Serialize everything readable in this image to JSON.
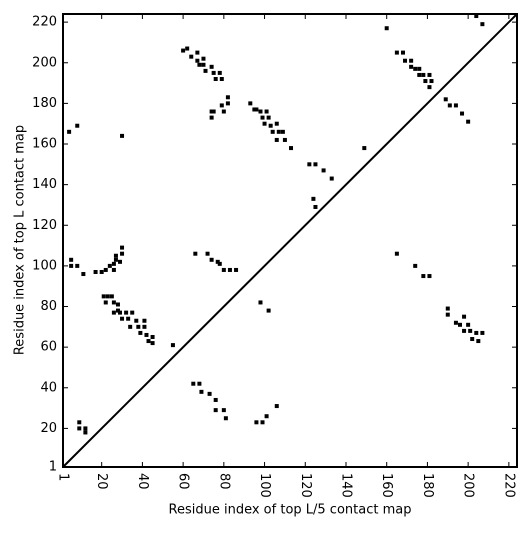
{
  "chart_data": {
    "type": "scatter",
    "xlabel": "Residue index of top L/5 contact map",
    "ylabel": "Residue index of top L contact map",
    "color": "#000000",
    "xlim": [
      1,
      224
    ],
    "ylim": [
      1,
      224
    ],
    "xticks": [
      1,
      20,
      40,
      60,
      80,
      100,
      120,
      140,
      160,
      180,
      200,
      220
    ],
    "yticks": [
      1,
      20,
      40,
      60,
      80,
      100,
      120,
      140,
      160,
      180,
      200,
      220
    ],
    "x": [
      60,
      62,
      64,
      67,
      67,
      68,
      70,
      70,
      71,
      74,
      75,
      76,
      78,
      79,
      74,
      75,
      74,
      79,
      80,
      82,
      82,
      93,
      95,
      96,
      98,
      99,
      100,
      101,
      102,
      103,
      104,
      106,
      107,
      106,
      109,
      110,
      113,
      122,
      125,
      129,
      133,
      124,
      125,
      149,
      4,
      8,
      30,
      21,
      23,
      22,
      25,
      26,
      28,
      26,
      28,
      29,
      30,
      32,
      33,
      35,
      34,
      37,
      38,
      39,
      41,
      41,
      42,
      43,
      45,
      45,
      55,
      20,
      22,
      24,
      26,
      26,
      27,
      27,
      29,
      30,
      30,
      17,
      11,
      5,
      8,
      5,
      66,
      72,
      74,
      77,
      78,
      80,
      83,
      86,
      65,
      68,
      69,
      73,
      76,
      76,
      80,
      81,
      96,
      99,
      98,
      102,
      101,
      106,
      9,
      12,
      9,
      12,
      160,
      165,
      168,
      169,
      172,
      172,
      174,
      176,
      176,
      178,
      179,
      181,
      182,
      181,
      189,
      191,
      194,
      197,
      200,
      204,
      207,
      165,
      174,
      178,
      181,
      190,
      190,
      194,
      196,
      198,
      198,
      200,
      201,
      202,
      204,
      205,
      207
    ],
    "y": [
      206,
      207,
      203,
      205,
      201,
      199,
      199,
      202,
      196,
      198,
      195,
      192,
      195,
      192,
      176,
      176,
      173,
      179,
      176,
      180,
      183,
      180,
      177,
      177,
      176,
      173,
      170,
      176,
      173,
      169,
      166,
      170,
      166,
      162,
      166,
      162,
      158,
      150,
      150,
      147,
      143,
      133,
      129,
      158,
      166,
      169,
      164,
      85,
      85,
      82,
      85,
      82,
      81,
      77,
      78,
      77,
      74,
      77,
      74,
      77,
      70,
      73,
      70,
      67,
      70,
      73,
      66,
      63,
      65,
      62,
      61,
      97,
      98,
      100,
      98,
      101,
      103,
      105,
      102,
      106,
      109,
      97,
      96,
      100,
      100,
      103,
      106,
      106,
      103,
      102,
      101,
      98,
      98,
      98,
      42,
      42,
      38,
      37,
      34,
      29,
      29,
      25,
      23,
      23,
      82,
      78,
      26,
      31,
      23,
      20,
      20,
      18,
      217,
      205,
      205,
      201,
      201,
      198,
      197,
      197,
      194,
      194,
      191,
      188,
      191,
      194,
      182,
      179,
      179,
      175,
      171,
      223,
      219,
      106,
      100,
      95,
      95,
      79,
      76,
      72,
      71,
      75,
      68,
      71,
      68,
      64,
      67,
      63,
      67
    ]
  }
}
